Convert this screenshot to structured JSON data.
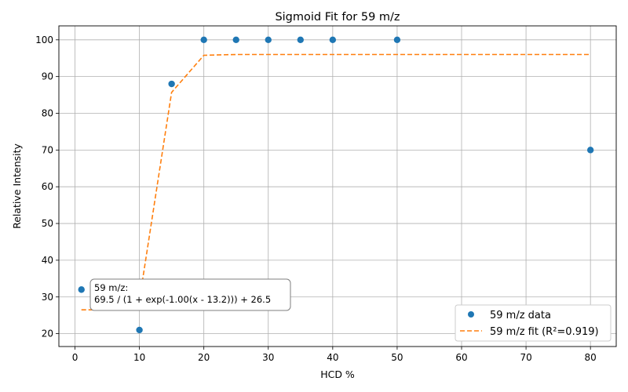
{
  "chart_data": {
    "type": "scatter",
    "title": "Sigmoid Fit for 59 m/z",
    "xlabel": "HCD %",
    "ylabel": "Relative Intensity",
    "xlim": [
      -2.5,
      84
    ],
    "ylim": [
      16.5,
      103.8
    ],
    "xticks": [
      0,
      10,
      20,
      30,
      40,
      50,
      60,
      70,
      80
    ],
    "yticks": [
      20,
      30,
      40,
      50,
      60,
      70,
      80,
      90,
      100
    ],
    "grid": true,
    "legend_position": "bottom-right",
    "series": [
      {
        "name": "59 m/z data",
        "kind": "scatter",
        "color": "#1f77b4",
        "x": [
          1,
          10,
          15,
          20,
          25,
          30,
          35,
          40,
          50,
          80
        ],
        "y": [
          32,
          21,
          88,
          100,
          100,
          100,
          100,
          100,
          100,
          70
        ]
      },
      {
        "name": "59 m/z fit (R²=0.919)",
        "kind": "line",
        "style": "dashed",
        "color": "#ff7f0e",
        "x": [
          1,
          5,
          10,
          15,
          20,
          25,
          30,
          35,
          40,
          50,
          80
        ],
        "y": [
          26.5,
          26.5,
          29.1,
          85.7,
          95.8,
          96.0,
          96.0,
          96.0,
          96.0,
          96.0,
          96.0
        ]
      }
    ],
    "annotation": {
      "line1": "59 m/z:",
      "line2": "69.5 / (1 + exp(-1.00(x - 13.2))) + 26.5"
    }
  }
}
